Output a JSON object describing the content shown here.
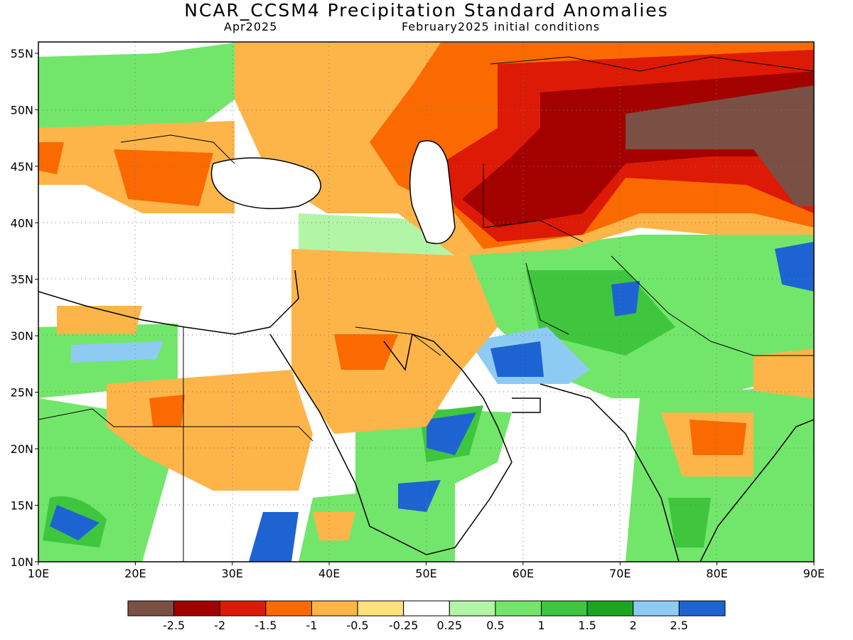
{
  "title": "NCAR_CCSM4 Precipitation Standard Anomalies",
  "subtitle_left": "Apr2025",
  "subtitle_right": "February2025 initial conditions",
  "lat_labels": [
    "55N",
    "50N",
    "45N",
    "40N",
    "35N",
    "30N",
    "25N",
    "20N",
    "15N",
    "10N"
  ],
  "lat_values": [
    55,
    50,
    45,
    40,
    35,
    30,
    25,
    20,
    15,
    10
  ],
  "lon_labels": [
    "10E",
    "20E",
    "30E",
    "40E",
    "50E",
    "60E",
    "70E",
    "80E",
    "90E"
  ],
  "lon_values": [
    10,
    20,
    30,
    40,
    50,
    60,
    70,
    80,
    90
  ],
  "colorbar": {
    "colors": [
      "#7a5045",
      "#a30000",
      "#dc1a06",
      "#fa6a00",
      "#fdb54a",
      "#fee17d",
      "#ffffff",
      "#b3f5a6",
      "#72e66a",
      "#3fc63e",
      "#1ca51f",
      "#8ecbf3",
      "#1d64d2"
    ],
    "labels": [
      "-2.5",
      "-2",
      "-1.5",
      "-1",
      "-0.5",
      "-0.25",
      "0.25",
      "0.5",
      "1",
      "1.5",
      "2",
      "2.5"
    ]
  }
}
